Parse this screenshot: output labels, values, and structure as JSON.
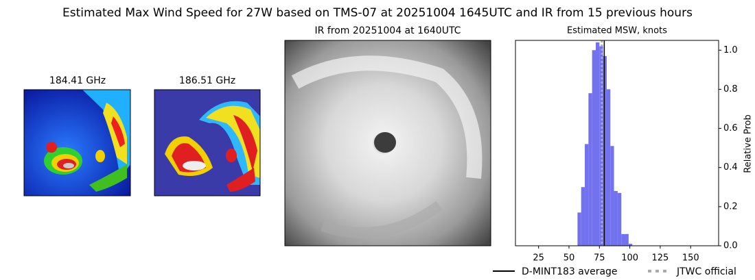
{
  "title": "Estimated Max Wind Speed for 27W based on TMS-07 at 20251004 1645UTC and IR from 15 previous hours",
  "panels": [
    {
      "title": "184.41 GHz"
    },
    {
      "title": "186.51 GHz"
    },
    {
      "title": "IR from 20251004 at 1640UTC"
    }
  ],
  "chart_data": {
    "type": "histogram",
    "title": "Estimated MSW, knots",
    "y_label": "Relative Prob",
    "bins": [
      57,
      60,
      63,
      66,
      69,
      72,
      75,
      78,
      81,
      84,
      87,
      90,
      93,
      96,
      99,
      102
    ],
    "values": [
      0.17,
      0.3,
      0.52,
      0.78,
      1.0,
      1.04,
      1.02,
      0.97,
      0.8,
      0.51,
      0.28,
      0.27,
      0.06,
      0.06,
      0.01
    ],
    "color": "#7272ee",
    "xlim": [
      6,
      173
    ],
    "xticks": [
      25,
      50,
      75,
      100,
      125,
      150
    ],
    "ylim": [
      0,
      1.05
    ],
    "yticks": [
      {
        "value": 0,
        "label": "0.0"
      },
      {
        "value": 0.2,
        "label": "0.2"
      },
      {
        "value": 0.4,
        "label": "0.4"
      },
      {
        "value": 0.6,
        "label": "0.6"
      },
      {
        "value": 0.8,
        "label": "0.8"
      },
      {
        "value": 1.0,
        "label": "1.0"
      }
    ],
    "reference_lines": [
      {
        "name": "D-MINT183 average",
        "value": 79,
        "color": "#000000",
        "style": "solid"
      },
      {
        "name": "JTWC official",
        "value": 77,
        "color": "#aaaaaa",
        "style": "dotted"
      }
    ]
  }
}
